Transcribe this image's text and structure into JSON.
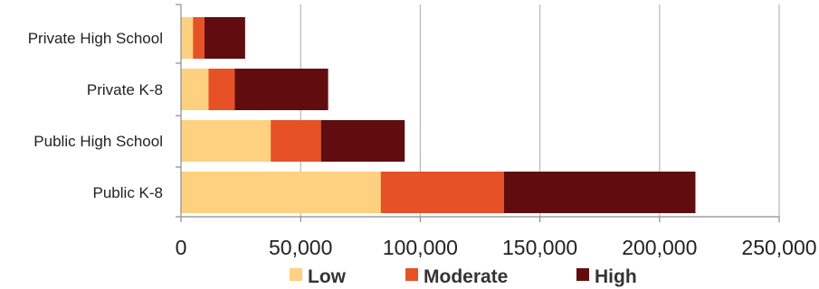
{
  "chart_data": {
    "type": "bar",
    "orientation": "horizontal",
    "stacked": true,
    "categories": [
      "Private High School",
      "Private K-8",
      "Public High School",
      "Public K-8"
    ],
    "series": [
      {
        "name": "Low",
        "color": "#FDD17F",
        "values": [
          5000,
          11500,
          37500,
          83500
        ]
      },
      {
        "name": "Moderate",
        "color": "#E65126",
        "values": [
          4800,
          11000,
          21000,
          51500
        ]
      },
      {
        "name": "High",
        "color": "#610D0F",
        "values": [
          17000,
          39000,
          35000,
          80000
        ]
      }
    ],
    "xlim": [
      0,
      250000
    ],
    "xticks": [
      0,
      50000,
      100000,
      150000,
      200000,
      250000
    ],
    "xtick_labels": [
      "0",
      "50,000",
      "100,000",
      "150,000",
      "200,000",
      "250,000"
    ],
    "grid": "vertical",
    "legend": "bottom",
    "title": "",
    "xlabel": "",
    "ylabel": ""
  }
}
